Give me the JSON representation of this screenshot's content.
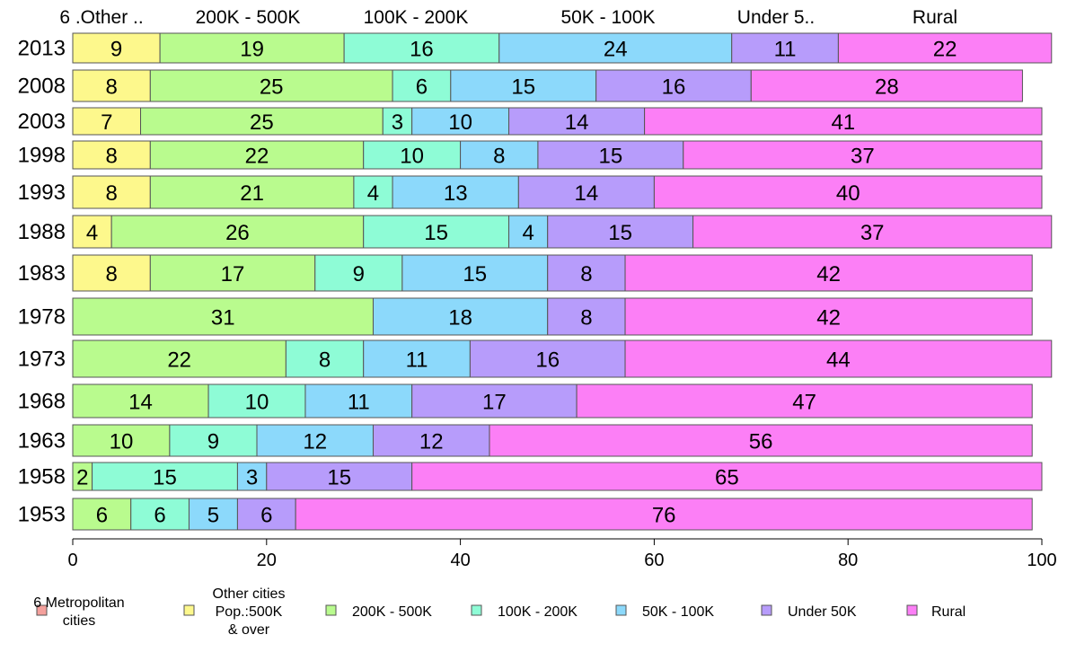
{
  "chart_data": {
    "type": "bar",
    "orientation": "horizontal",
    "stacked": true,
    "xlim": [
      0,
      100
    ],
    "x_ticks": [
      0,
      20,
      40,
      60,
      80,
      100
    ],
    "grid": false,
    "legend_position": "bottom",
    "categories": [
      "2013",
      "2008",
      "2003",
      "1998",
      "1993",
      "1988",
      "1983",
      "1978",
      "1973",
      "1968",
      "1963",
      "1958",
      "1953"
    ],
    "top_labels": [
      "6 .Other ..",
      "200K - 500K",
      "100K - 200K",
      "50K - 100K",
      "Under 5..",
      "Rural"
    ],
    "series": [
      {
        "key": "metro",
        "legend": [
          "6 Metropolitan",
          "cities"
        ],
        "color": "#f4a09c",
        "values": [
          0,
          0,
          0,
          0,
          0,
          0,
          0,
          0,
          0,
          0,
          0,
          0,
          0
        ]
      },
      {
        "key": "other",
        "legend": [
          "Other cities",
          "Pop.:500K",
          "& over"
        ],
        "color": "#fdf88c",
        "values": [
          9,
          8,
          7,
          8,
          8,
          4,
          8,
          0,
          0,
          0,
          0,
          0,
          0
        ]
      },
      {
        "key": "k200",
        "legend": [
          "200K - 500K"
        ],
        "color": "#b9fb8e",
        "values": [
          19,
          25,
          25,
          22,
          21,
          26,
          17,
          31,
          22,
          14,
          10,
          2,
          6
        ]
      },
      {
        "key": "k100",
        "legend": [
          "100K - 200K"
        ],
        "color": "#8efcd6",
        "values": [
          16,
          6,
          3,
          10,
          4,
          15,
          9,
          0,
          8,
          10,
          9,
          15,
          6
        ]
      },
      {
        "key": "k50",
        "legend": [
          "50K - 100K"
        ],
        "color": "#8cd9fb",
        "values": [
          24,
          15,
          10,
          8,
          13,
          4,
          15,
          18,
          11,
          11,
          12,
          3,
          5
        ]
      },
      {
        "key": "u50",
        "legend": [
          "Under 50K"
        ],
        "color": "#b79cfb",
        "values": [
          11,
          16,
          14,
          15,
          14,
          15,
          8,
          8,
          16,
          17,
          12,
          15,
          6
        ]
      },
      {
        "key": "rural",
        "legend": [
          "Rural"
        ],
        "color": "#fc7ff6",
        "values": [
          22,
          28,
          41,
          37,
          40,
          37,
          42,
          42,
          44,
          47,
          56,
          65,
          76
        ]
      }
    ],
    "colors": {
      "bar_stroke": "#555555",
      "axis": "#000000"
    }
  }
}
